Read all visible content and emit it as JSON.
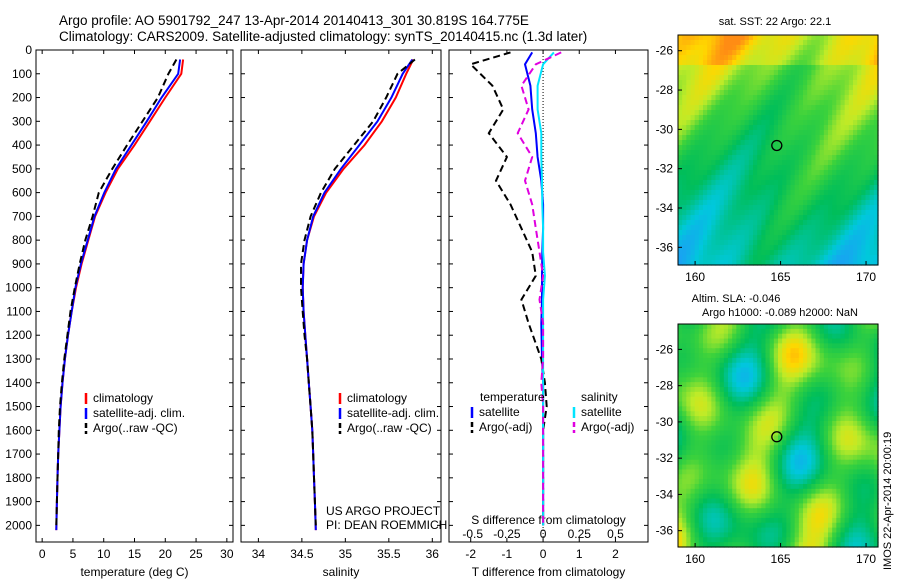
{
  "header": {
    "line1": "Argo profile: AO 5901792_247 13-Apr-2014 20140413_301 30.819S 164.775E",
    "line2": "Climatology: CARS2009. Satellite-adjusted climatology: synTS_20140415.nc (1.3d later)"
  },
  "colors": {
    "climatology": "#ff0000",
    "satellite": "#0000ff",
    "argo": "#000000",
    "salinity_satellite": "#00e5ff",
    "salinity_argo": "#e000e0"
  },
  "chart_data": [
    {
      "type": "line",
      "panel": "temperature",
      "xlabel": "temperature (deg C)",
      "xlim": [
        -1,
        31
      ],
      "xticks": [
        "0",
        "5",
        "10",
        "15",
        "20",
        "25",
        "30"
      ],
      "ylim": [
        2070,
        0
      ],
      "yticks": [
        "0",
        "100",
        "200",
        "300",
        "400",
        "500",
        "600",
        "700",
        "800",
        "900",
        "1000",
        "1100",
        "1200",
        "1300",
        "1400",
        "1500",
        "1600",
        "1700",
        "1800",
        "1900",
        "2000"
      ],
      "legend": [
        "climatology",
        "satellite-adj. clim.",
        "Argo(..raw -QC)"
      ],
      "legend_position": "lower-center",
      "series": [
        {
          "name": "climatology",
          "color": "#ff0000",
          "dash": "",
          "x": [
            22.9,
            22.6,
            20.0,
            17.5,
            15.0,
            12.3,
            10.3,
            8.6,
            7.5,
            6.4,
            5.5,
            4.8,
            4.2,
            3.7,
            3.3,
            3.0,
            2.8,
            2.6,
            2.5,
            2.4,
            2.3
          ],
          "y": [
            40,
            100,
            200,
            300,
            400,
            500,
            600,
            700,
            800,
            900,
            1000,
            1100,
            1200,
            1300,
            1400,
            1500,
            1600,
            1700,
            1800,
            1900,
            2020
          ]
        },
        {
          "name": "satellite-adj. clim.",
          "color": "#0000ff",
          "dash": "",
          "x": [
            22.4,
            22.1,
            19.4,
            17.0,
            14.5,
            12.0,
            10.1,
            8.5,
            7.4,
            6.3,
            5.4,
            4.8,
            4.2,
            3.7,
            3.3,
            3.0,
            2.8,
            2.6,
            2.5,
            2.4,
            2.3
          ],
          "y": [
            40,
            100,
            200,
            300,
            400,
            500,
            600,
            700,
            800,
            900,
            1000,
            1100,
            1200,
            1300,
            1400,
            1500,
            1600,
            1700,
            1800,
            1900,
            2020
          ]
        },
        {
          "name": "Argo(..raw -QC)",
          "color": "#000000",
          "dash": "7,4",
          "x": [
            21.8,
            20.5,
            18.8,
            16.3,
            13.8,
            11.4,
            9.2,
            8.2,
            7.0,
            6.1,
            5.3,
            4.6,
            4.1,
            3.6,
            3.2,
            2.9,
            2.7,
            2.6,
            2.5,
            2.4,
            2.3
          ],
          "y": [
            40,
            100,
            200,
            300,
            400,
            500,
            600,
            700,
            800,
            900,
            1000,
            1100,
            1200,
            1300,
            1400,
            1500,
            1600,
            1700,
            1800,
            1900,
            2000
          ]
        }
      ]
    },
    {
      "type": "line",
      "panel": "salinity",
      "xlabel": "salinity",
      "xlim": [
        33.8,
        36.1
      ],
      "xticks": [
        "34",
        "34.5",
        "35",
        "35.5",
        "36"
      ],
      "ylim": [
        2070,
        0
      ],
      "legend": [
        "climatology",
        "satellite-adj. clim.",
        "Argo(..raw -QC)"
      ],
      "legend_position": "lower-center",
      "annotation": [
        "US ARGO PROJECT",
        "PI: DEAN ROEMMICH"
      ],
      "series": [
        {
          "name": "climatology",
          "color": "#ff0000",
          "dash": "",
          "x": [
            35.78,
            35.7,
            35.58,
            35.42,
            35.22,
            34.98,
            34.78,
            34.64,
            34.56,
            34.52,
            34.51,
            34.52,
            34.54,
            34.56,
            34.58,
            34.6,
            34.62,
            34.63,
            34.64,
            34.65,
            34.66
          ],
          "y": [
            40,
            100,
            200,
            300,
            400,
            500,
            600,
            700,
            800,
            900,
            1000,
            1100,
            1200,
            1300,
            1400,
            1500,
            1600,
            1700,
            1800,
            1900,
            2020
          ]
        },
        {
          "name": "satellite-adj. clim.",
          "color": "#0000ff",
          "dash": "",
          "x": [
            35.77,
            35.66,
            35.53,
            35.37,
            35.16,
            34.95,
            34.76,
            34.63,
            34.56,
            34.52,
            34.51,
            34.52,
            34.54,
            34.56,
            34.58,
            34.6,
            34.62,
            34.63,
            34.64,
            34.65,
            34.66
          ],
          "y": [
            40,
            100,
            200,
            300,
            400,
            500,
            600,
            700,
            800,
            900,
            1000,
            1100,
            1200,
            1300,
            1400,
            1500,
            1600,
            1700,
            1800,
            1900,
            2020
          ]
        },
        {
          "name": "Argo(..raw -QC)",
          "color": "#000000",
          "dash": "7,4",
          "x": [
            35.8,
            35.6,
            35.47,
            35.32,
            35.1,
            34.88,
            34.72,
            34.6,
            34.53,
            34.49,
            34.49,
            34.51,
            34.53,
            34.56,
            34.58,
            34.6,
            34.62,
            34.63,
            34.64,
            34.65,
            34.66
          ],
          "y": [
            40,
            100,
            200,
            300,
            400,
            500,
            600,
            700,
            800,
            900,
            1000,
            1100,
            1200,
            1300,
            1400,
            1500,
            1600,
            1700,
            1800,
            1900,
            2000
          ]
        }
      ]
    },
    {
      "type": "line",
      "panel": "difference",
      "xlabel_bottom": "T difference from climatology",
      "xlabel_top": "S difference from climatology",
      "xlim_T": [
        -2.6,
        2.9
      ],
      "xticks_T": [
        "-2",
        "-1",
        "0",
        "1",
        "2"
      ],
      "xticks_S": [
        "-0.5",
        "-0.25",
        "0",
        "0.25",
        "0.5"
      ],
      "legend_temperature_title": "temperature",
      "legend_temperature": [
        "satellite",
        "Argo(-adj)"
      ],
      "legend_salinity_title": "salinity",
      "legend_salinity": [
        "satellite",
        "Argo(-adj)"
      ],
      "series": [
        {
          "name": "satellite",
          "group": "temperature",
          "color": "#0000ff",
          "dash": "",
          "x": [
            -0.3,
            -0.5,
            -0.35,
            -0.3,
            -0.2,
            -0.15,
            -0.05,
            0.0,
            0.0,
            -0.02,
            -0.03,
            -0.03,
            -0.05,
            -0.03,
            0.0,
            0.0,
            0.0,
            0.0,
            0.0,
            0.0,
            0.0
          ],
          "y": [
            10,
            60,
            150,
            250,
            350,
            450,
            550,
            650,
            750,
            850,
            950,
            1050,
            1150,
            1300,
            1400,
            1500,
            1600,
            1700,
            1800,
            1900,
            2000
          ]
        },
        {
          "name": "Argo(-adj)",
          "group": "temperature",
          "color": "#000000",
          "dash": "7,4",
          "x": [
            -0.9,
            -2.0,
            -1.4,
            -1.1,
            -1.5,
            -1.0,
            -1.3,
            -0.9,
            -0.6,
            -0.3,
            -0.2,
            -0.6,
            -0.4,
            -0.05,
            0.05,
            0.1,
            0.0,
            0.0,
            0.0,
            0.0,
            0.0
          ],
          "y": [
            10,
            60,
            150,
            250,
            350,
            450,
            550,
            650,
            750,
            850,
            950,
            1050,
            1150,
            1300,
            1400,
            1500,
            1600,
            1700,
            1800,
            1900,
            2000
          ]
        },
        {
          "name": "satellite",
          "group": "salinity",
          "color": "#00e5ff",
          "dash": "",
          "x": [
            0.3,
            0.0,
            -0.15,
            -0.15,
            -0.05,
            -0.05,
            -0.03,
            -0.02,
            0.0,
            0.0,
            0.05,
            0.0,
            0.0,
            0.0,
            0.0,
            0.0,
            0.0,
            0.0,
            0.0,
            0.0,
            0.0
          ],
          "y": [
            10,
            60,
            150,
            250,
            350,
            450,
            550,
            650,
            750,
            850,
            950,
            1050,
            1150,
            1300,
            1400,
            1500,
            1600,
            1700,
            1800,
            1900,
            2000
          ]
        },
        {
          "name": "Argo(-adj)",
          "group": "salinity",
          "color": "#e000e0",
          "dash": "7,4",
          "x": [
            0.5,
            -0.2,
            -0.6,
            -0.4,
            -0.7,
            -0.3,
            -0.5,
            -0.3,
            -0.2,
            -0.1,
            0.0,
            -0.1,
            0.0,
            0.0,
            -0.05,
            0.0,
            0.0,
            0.0,
            0.0,
            0.0,
            0.0
          ],
          "y": [
            10,
            60,
            150,
            250,
            350,
            450,
            550,
            650,
            750,
            850,
            950,
            1050,
            1150,
            1300,
            1400,
            1500,
            1600,
            1700,
            1800,
            1900,
            2000
          ]
        }
      ]
    },
    {
      "type": "heatmap",
      "panel": "sst-map",
      "title": "sat. SST: 22 Argo: 22.1",
      "xlim": [
        159,
        170.7
      ],
      "ylim": [
        -36.9,
        -25.2
      ],
      "xticks": [
        "160",
        "165",
        "170"
      ],
      "yticks": [
        "-26",
        "-28",
        "-30",
        "-32",
        "-34",
        "-36"
      ],
      "float_marker": [
        164.78,
        -30.82
      ]
    },
    {
      "type": "heatmap",
      "panel": "sla-map",
      "title_lines": [
        "Altim. SLA: -0.046",
        "Argo h1000: -0.089 h2000: NaN"
      ],
      "xlim": [
        159,
        170.7
      ],
      "ylim": [
        -36.9,
        -24.6
      ],
      "xticks": [
        "160",
        "165",
        "170"
      ],
      "yticks": [
        "-26",
        "-28",
        "-30",
        "-32",
        "-34",
        "-36"
      ],
      "float_marker": [
        164.78,
        -30.82
      ]
    }
  ],
  "watermark": "IMOS 22-Apr-2014 20:00:19"
}
